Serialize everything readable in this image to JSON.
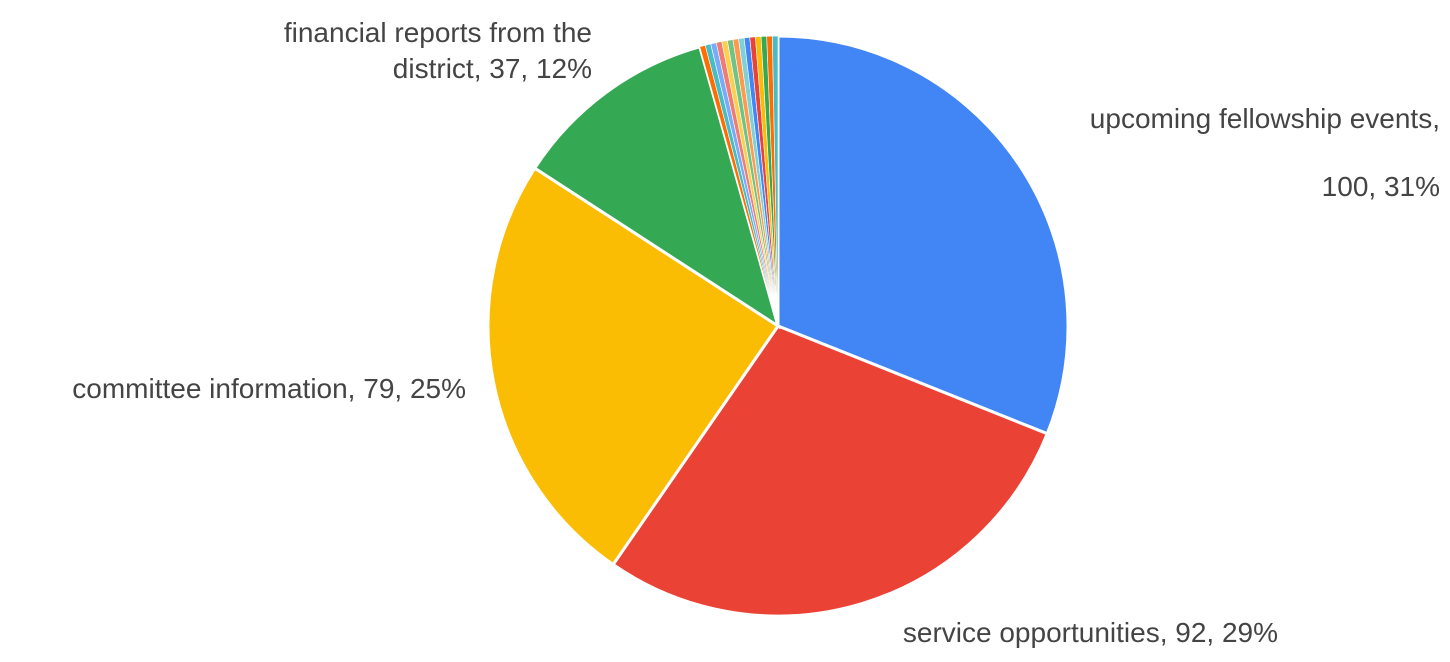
{
  "chart_data": {
    "type": "pie",
    "start_angle_deg": 0,
    "direction": "clockwise",
    "slices": [
      {
        "label": "upcoming fellowship events",
        "value": 100,
        "percent": "31%",
        "color": "#4285F4",
        "label_lines": [
          "upcoming fellowship events,",
          "100, 31%"
        ]
      },
      {
        "label": "service opportunities",
        "value": 92,
        "percent": "29%",
        "color": "#EA4335",
        "label_lines": [
          "service opportunities, 92, 29%"
        ]
      },
      {
        "label": "committee information",
        "value": 79,
        "percent": "25%",
        "color": "#FBBC04",
        "label_lines": [
          "committee information, 79, 25%"
        ]
      },
      {
        "label": "financial reports from the district",
        "value": 37,
        "percent": "12%",
        "color": "#34A853",
        "label_lines": [
          "financial reports from the",
          "district, 37, 12%"
        ]
      },
      {
        "label": "",
        "value": 1,
        "color": "#FF6D01"
      },
      {
        "label": "",
        "value": 1,
        "color": "#46BDC6"
      },
      {
        "label": "",
        "value": 1,
        "color": "#7BAAF7"
      },
      {
        "label": "",
        "value": 1,
        "color": "#F07B72"
      },
      {
        "label": "",
        "value": 1,
        "color": "#FCD04F"
      },
      {
        "label": "",
        "value": 1,
        "color": "#71C287"
      },
      {
        "label": "",
        "value": 1,
        "color": "#FF994D"
      },
      {
        "label": "",
        "value": 1,
        "color": "#7ED1D7"
      },
      {
        "label": "",
        "value": 1,
        "color": "#4285F4"
      },
      {
        "label": "",
        "value": 1,
        "color": "#EA4335"
      },
      {
        "label": "",
        "value": 1,
        "color": "#FBBC04"
      },
      {
        "label": "",
        "value": 1,
        "color": "#34A853"
      },
      {
        "label": "",
        "value": 1,
        "color": "#FF6D01"
      },
      {
        "label": "",
        "value": 1,
        "color": "#46BDC6"
      }
    ],
    "legend": "none",
    "label_color": "#444444"
  }
}
